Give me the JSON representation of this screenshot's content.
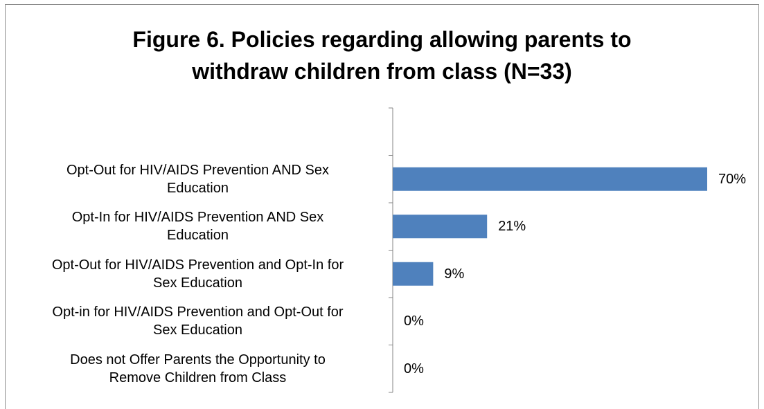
{
  "chart_data": {
    "type": "bar",
    "orientation": "horizontal",
    "title_lines": [
      "Figure 6. Policies regarding allowing parents to",
      "withdraw children from class (N=33)"
    ],
    "categories": [
      "Opt-Out for HIV/AIDS Prevention AND Sex Education",
      "Opt-In for HIV/AIDS Prevention AND Sex Education",
      "Opt-Out for HIV/AIDS Prevention and Opt-In for Sex Education",
      "Opt-in for HIV/AIDS Prevention and Opt-Out for Sex Education",
      "Does not Offer Parents the Opportunity to Remove Children from Class"
    ],
    "category_lines": [
      [
        "Opt-Out for HIV/AIDS Prevention AND Sex",
        "Education"
      ],
      [
        "Opt-In for HIV/AIDS Prevention AND Sex",
        "Education"
      ],
      [
        "Opt-Out for HIV/AIDS Prevention and Opt-In for",
        "Sex Education"
      ],
      [
        "Opt-in for HIV/AIDS Prevention and Opt-Out for",
        "Sex Education"
      ],
      [
        "Does not Offer Parents the Opportunity to",
        "Remove Children from Class"
      ]
    ],
    "values": [
      70,
      21,
      9,
      0,
      0
    ],
    "data_labels": [
      "70%",
      "21%",
      "9%",
      "0%",
      "0%"
    ],
    "unit": "%",
    "xlim": [
      0,
      100
    ],
    "grid": false,
    "legend": "none",
    "bar_color": "#4f81bd"
  }
}
